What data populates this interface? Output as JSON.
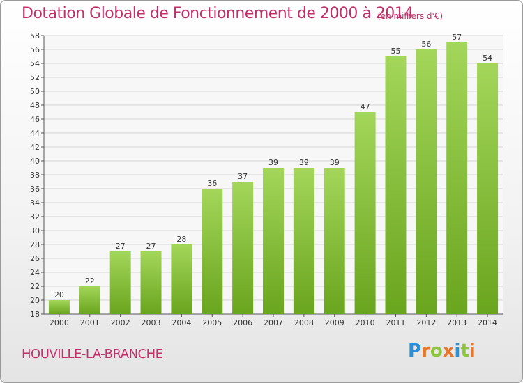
{
  "chart_data": {
    "type": "bar",
    "title": "Dotation Globale de Fonctionnement de 2000 à 2014",
    "subtitle": "(en milliers d'€)",
    "categories": [
      "2000",
      "2001",
      "2002",
      "2003",
      "2004",
      "2005",
      "2006",
      "2007",
      "2008",
      "2009",
      "2010",
      "2011",
      "2012",
      "2013",
      "2014"
    ],
    "values": [
      20,
      22,
      27,
      27,
      28,
      36,
      37,
      39,
      39,
      39,
      47,
      55,
      56,
      57,
      54
    ],
    "ylim": [
      18,
      58
    ],
    "yticks": [
      18,
      20,
      22,
      24,
      26,
      28,
      30,
      32,
      34,
      36,
      38,
      40,
      42,
      44,
      46,
      48,
      50,
      52,
      54,
      56,
      58
    ],
    "grid": true,
    "bar_color": "#8cc63f"
  },
  "location": "HOUVILLE-LA-BRANCHE",
  "brand": {
    "text": "Proxiti",
    "letters": [
      "P",
      "r",
      "o",
      "x",
      "i",
      "t",
      "i"
    ],
    "letter_colors": [
      "#2a8fd6",
      "#e8762b",
      "#8cc63f",
      "#e8762b",
      "#2a8fd6",
      "#8cc63f",
      "#e8762b"
    ]
  }
}
